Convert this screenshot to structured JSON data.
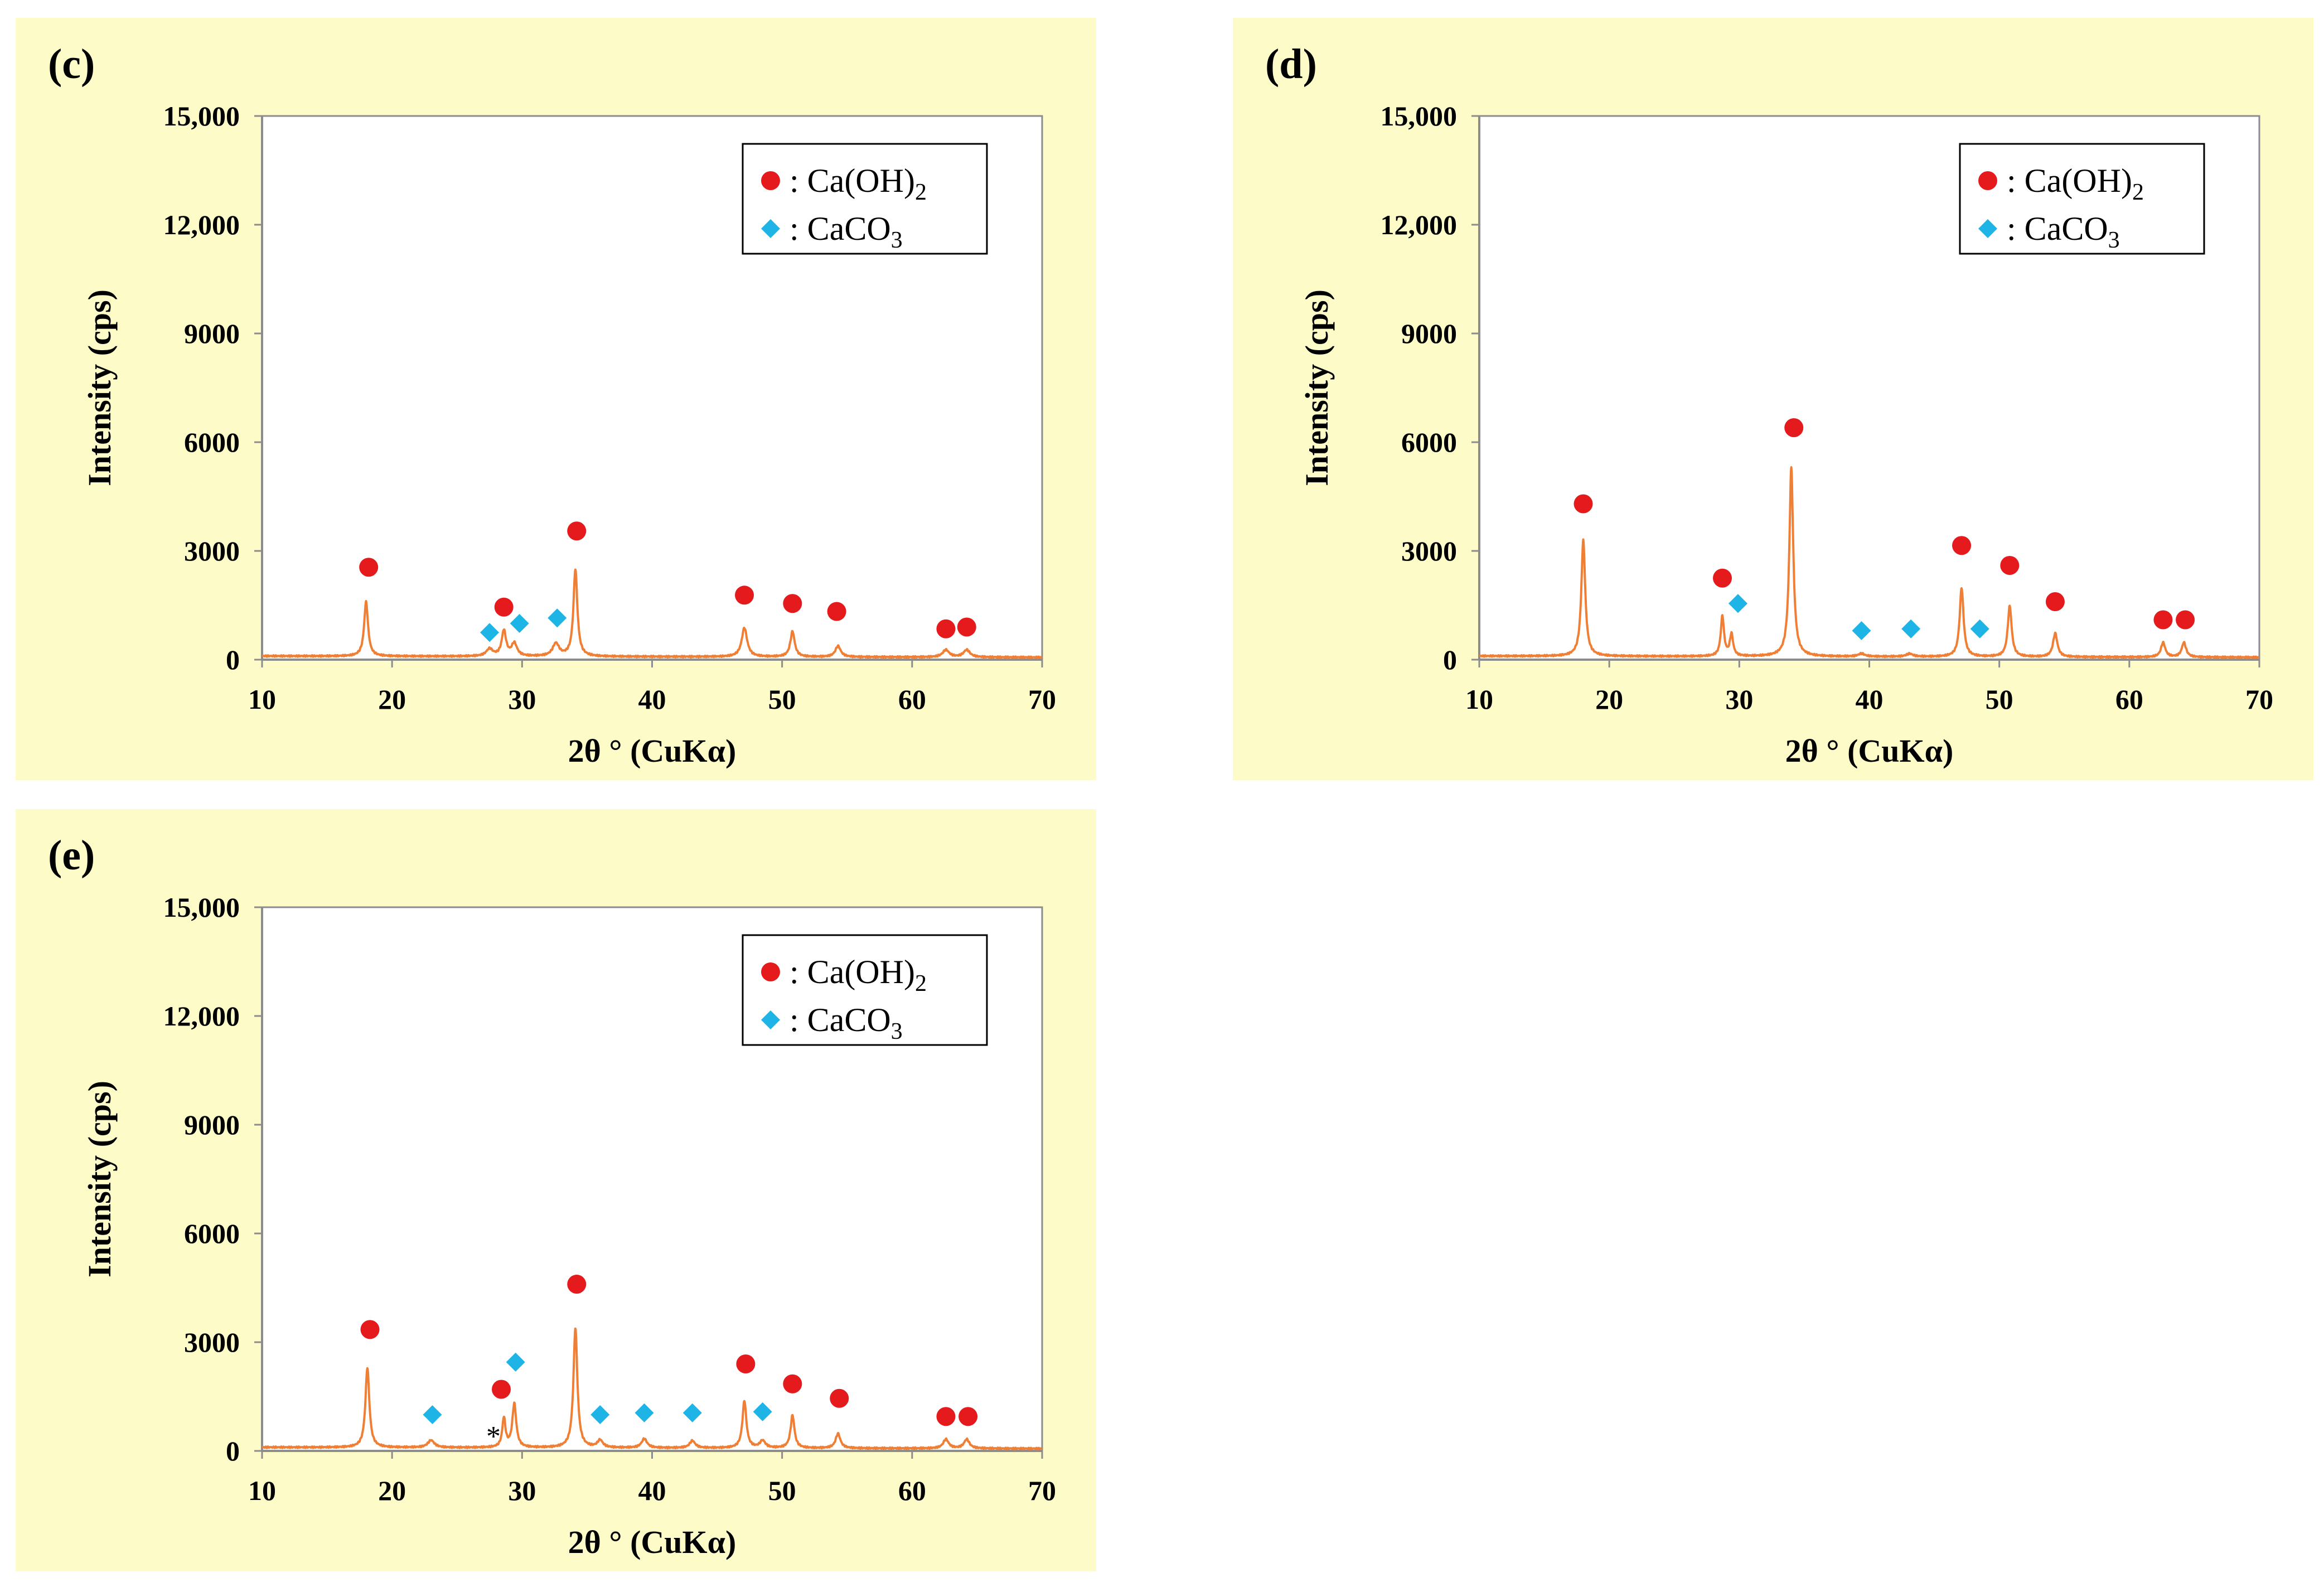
{
  "chart_data": [
    {
      "panel_label": "(c)",
      "type": "line",
      "xlabel": "2θ ° (CuKα)",
      "ylabel": "Intensity (cps)",
      "xlim": [
        10,
        70
      ],
      "ylim": [
        0,
        15000
      ],
      "xticks": [
        10,
        20,
        30,
        40,
        50,
        60,
        70
      ],
      "yticks": [
        0,
        3000,
        6000,
        9000,
        12000,
        15000
      ],
      "ytick_labels": [
        "0",
        "3000",
        "6000",
        "9000",
        "12,000",
        "15,000"
      ],
      "grid": false,
      "legend_position": "top-right",
      "legend": [
        {
          "marker": "circle",
          "color": "#e41a1c",
          "text": ": Ca(OH)",
          "sub": "2"
        },
        {
          "marker": "diamond",
          "color": "#1fb4e6",
          "text": ": CaCO",
          "sub": "3"
        }
      ],
      "baseline": 100,
      "peaks": [
        [
          18.0,
          1500,
          0.18
        ],
        [
          27.5,
          200,
          0.3
        ],
        [
          28.6,
          700,
          0.2
        ],
        [
          29.4,
          350,
          0.25
        ],
        [
          32.6,
          350,
          0.3
        ],
        [
          34.1,
          2400,
          0.18
        ],
        [
          47.1,
          800,
          0.25
        ],
        [
          50.8,
          700,
          0.2
        ],
        [
          54.3,
          300,
          0.25
        ],
        [
          62.6,
          200,
          0.3
        ],
        [
          64.2,
          200,
          0.3
        ]
      ],
      "series": [
        {
          "name": "Ca(OH)2",
          "marker": "circle",
          "color": "#e41a1c",
          "points": [
            [
              18.2,
              2550
            ],
            [
              28.6,
              1450
            ],
            [
              34.2,
              3550
            ],
            [
              47.1,
              1780
            ],
            [
              50.8,
              1550
            ],
            [
              54.2,
              1330
            ],
            [
              62.6,
              850
            ],
            [
              64.2,
              900
            ]
          ]
        },
        {
          "name": "CaCO3",
          "marker": "diamond",
          "color": "#1fb4e6",
          "points": [
            [
              27.5,
              750
            ],
            [
              29.8,
              1000
            ],
            [
              32.7,
              1150
            ]
          ]
        }
      ]
    },
    {
      "panel_label": "(d)",
      "type": "line",
      "xlabel": "2θ ° (CuKα)",
      "ylabel": "Intensity (cps)",
      "xlim": [
        10,
        70
      ],
      "ylim": [
        0,
        15000
      ],
      "xticks": [
        10,
        20,
        30,
        40,
        50,
        60,
        70
      ],
      "yticks": [
        0,
        3000,
        6000,
        9000,
        12000,
        15000
      ],
      "ytick_labels": [
        "0",
        "3000",
        "6000",
        "9000",
        "12,000",
        "15,000"
      ],
      "grid": false,
      "legend_position": "top-right",
      "legend": [
        {
          "marker": "circle",
          "color": "#e41a1c",
          "text": ": Ca(OH)",
          "sub": "2"
        },
        {
          "marker": "diamond",
          "color": "#1fb4e6",
          "text": ": CaCO",
          "sub": "3"
        }
      ],
      "baseline": 100,
      "peaks": [
        [
          18.0,
          3200,
          0.18
        ],
        [
          28.7,
          1100,
          0.15
        ],
        [
          29.4,
          600,
          0.15
        ],
        [
          34.0,
          5200,
          0.18
        ],
        [
          39.4,
          80,
          0.3
        ],
        [
          43.1,
          80,
          0.3
        ],
        [
          47.1,
          1900,
          0.18
        ],
        [
          50.8,
          1400,
          0.18
        ],
        [
          54.3,
          650,
          0.2
        ],
        [
          62.6,
          400,
          0.2
        ],
        [
          64.2,
          400,
          0.2
        ]
      ],
      "series": [
        {
          "name": "Ca(OH)2",
          "marker": "circle",
          "color": "#e41a1c",
          "points": [
            [
              18.0,
              4300
            ],
            [
              28.7,
              2250
            ],
            [
              34.2,
              6400
            ],
            [
              47.1,
              3150
            ],
            [
              50.8,
              2600
            ],
            [
              54.3,
              1600
            ],
            [
              62.6,
              1100
            ],
            [
              64.3,
              1100
            ]
          ]
        },
        {
          "name": "CaCO3",
          "marker": "diamond",
          "color": "#1fb4e6",
          "points": [
            [
              29.9,
              1550
            ],
            [
              39.4,
              800
            ],
            [
              43.2,
              850
            ],
            [
              48.5,
              850
            ]
          ]
        }
      ]
    },
    {
      "panel_label": "(e)",
      "type": "line",
      "xlabel": "2θ ° (CuKα)",
      "ylabel": "Intensity (cps)",
      "xlim": [
        10,
        70
      ],
      "ylim": [
        0,
        15000
      ],
      "xticks": [
        10,
        20,
        30,
        40,
        50,
        60,
        70
      ],
      "yticks": [
        0,
        3000,
        6000,
        9000,
        12000,
        15000
      ],
      "ytick_labels": [
        "0",
        "3000",
        "6000",
        "9000",
        "12,000",
        "15,000"
      ],
      "grid": false,
      "legend_position": "top-right",
      "legend": [
        {
          "marker": "circle",
          "color": "#e41a1c",
          "text": ": Ca(OH)",
          "sub": "2"
        },
        {
          "marker": "diamond",
          "color": "#1fb4e6",
          "text": ": CaCO",
          "sub": "3"
        }
      ],
      "annotations": [
        {
          "text": "*",
          "x": 27.8,
          "y": 450
        }
      ],
      "baseline": 100,
      "peaks": [
        [
          18.1,
          2200,
          0.18
        ],
        [
          23.0,
          200,
          0.3
        ],
        [
          28.6,
          800,
          0.15
        ],
        [
          29.4,
          1200,
          0.18
        ],
        [
          34.1,
          3300,
          0.18
        ],
        [
          36.0,
          200,
          0.25
        ],
        [
          39.4,
          250,
          0.25
        ],
        [
          43.1,
          200,
          0.25
        ],
        [
          47.1,
          1300,
          0.18
        ],
        [
          48.5,
          200,
          0.25
        ],
        [
          50.8,
          900,
          0.18
        ],
        [
          54.3,
          400,
          0.22
        ],
        [
          62.6,
          250,
          0.25
        ],
        [
          64.2,
          250,
          0.25
        ]
      ],
      "series": [
        {
          "name": "Ca(OH)2",
          "marker": "circle",
          "color": "#e41a1c",
          "points": [
            [
              18.3,
              3350
            ],
            [
              28.4,
              1700
            ],
            [
              34.2,
              4600
            ],
            [
              47.2,
              2400
            ],
            [
              50.8,
              1850
            ],
            [
              54.4,
              1450
            ],
            [
              62.6,
              950
            ],
            [
              64.3,
              950
            ]
          ]
        },
        {
          "name": "CaCO3",
          "marker": "diamond",
          "color": "#1fb4e6",
          "points": [
            [
              23.1,
              1000
            ],
            [
              29.5,
              2450
            ],
            [
              36.0,
              1000
            ],
            [
              39.4,
              1050
            ],
            [
              43.1,
              1050
            ],
            [
              48.5,
              1080
            ]
          ]
        }
      ]
    }
  ],
  "colors": {
    "panel_background": "#fdfcc8",
    "line": "#f07f36",
    "circle": "#e41a1c",
    "diamond": "#1fb4e6"
  }
}
